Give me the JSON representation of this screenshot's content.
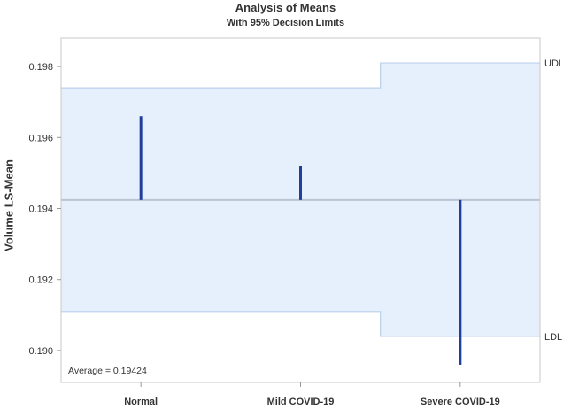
{
  "chart_data": {
    "type": "bar",
    "title": "Analysis of Means",
    "subtitle": "With 95% Decision Limits",
    "xlabel": "",
    "ylabel": "Volume LS-Mean",
    "categories": [
      "Normal",
      "Mild COVID-19",
      "Severe COVID-19"
    ],
    "values": [
      0.1966,
      0.1952,
      0.1896
    ],
    "average": 0.19424,
    "average_label": "Average = 0.19424",
    "upper_decision_limits": [
      0.1974,
      0.1974,
      0.1981
    ],
    "lower_decision_limits": [
      0.1911,
      0.1911,
      0.1904
    ],
    "udl_label": "UDL",
    "ldl_label": "LDL",
    "yticks": [
      0.19,
      0.192,
      0.194,
      0.196,
      0.198
    ],
    "ytick_labels": [
      "0.190",
      "0.192",
      "0.194",
      "0.196",
      "0.198"
    ],
    "ylim": [
      0.1891,
      0.1988
    ],
    "colors": {
      "bar": "#1f3f9a",
      "band_fill": "#e6effc",
      "band_stroke": "#bcd0ec",
      "average_line": "#b8c4d4",
      "frame": "#c8c8c8"
    }
  }
}
